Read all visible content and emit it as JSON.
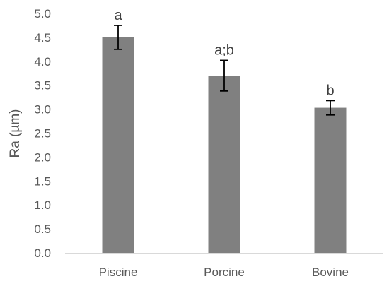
{
  "chart_data": {
    "type": "bar",
    "categories": [
      "Piscine",
      "Porcine",
      "Bovine"
    ],
    "values": [
      4.5,
      3.7,
      3.03
    ],
    "error": [
      0.25,
      0.32,
      0.15
    ],
    "significance_labels": [
      "a",
      "a;b",
      "b"
    ],
    "ylabel": "Ra (µm)",
    "xlabel": "",
    "ylim": [
      0,
      5
    ],
    "yticks": [
      "0.0",
      "0.5",
      "1.0",
      "1.5",
      "2.0",
      "2.5",
      "3.0",
      "3.5",
      "4.0",
      "4.5",
      "5.0"
    ],
    "grid": false,
    "bar_color": "#808080",
    "error_color": "#000000"
  }
}
